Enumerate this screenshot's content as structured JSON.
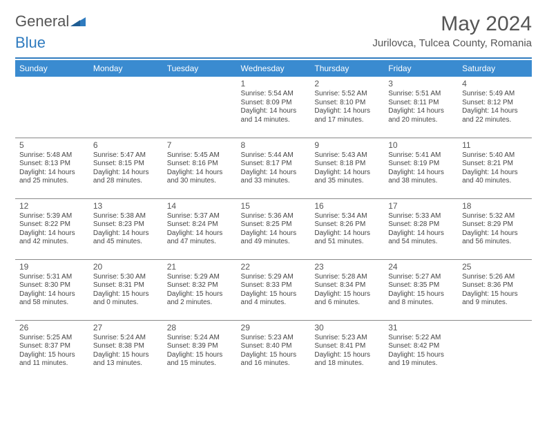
{
  "brand": {
    "part1": "General",
    "part2": "Blue"
  },
  "title": "May 2024",
  "subtitle": "Jurilovca, Tulcea County, Romania",
  "headerColor": "#3a8bd0",
  "ruleColor": "#2f7bbf",
  "dayHeaders": [
    "Sunday",
    "Monday",
    "Tuesday",
    "Wednesday",
    "Thursday",
    "Friday",
    "Saturday"
  ],
  "weeks": [
    [
      null,
      null,
      null,
      {
        "n": "1",
        "sr": "5:54 AM",
        "ss": "8:09 PM",
        "dl": "14 hours and 14 minutes."
      },
      {
        "n": "2",
        "sr": "5:52 AM",
        "ss": "8:10 PM",
        "dl": "14 hours and 17 minutes."
      },
      {
        "n": "3",
        "sr": "5:51 AM",
        "ss": "8:11 PM",
        "dl": "14 hours and 20 minutes."
      },
      {
        "n": "4",
        "sr": "5:49 AM",
        "ss": "8:12 PM",
        "dl": "14 hours and 22 minutes."
      }
    ],
    [
      {
        "n": "5",
        "sr": "5:48 AM",
        "ss": "8:13 PM",
        "dl": "14 hours and 25 minutes."
      },
      {
        "n": "6",
        "sr": "5:47 AM",
        "ss": "8:15 PM",
        "dl": "14 hours and 28 minutes."
      },
      {
        "n": "7",
        "sr": "5:45 AM",
        "ss": "8:16 PM",
        "dl": "14 hours and 30 minutes."
      },
      {
        "n": "8",
        "sr": "5:44 AM",
        "ss": "8:17 PM",
        "dl": "14 hours and 33 minutes."
      },
      {
        "n": "9",
        "sr": "5:43 AM",
        "ss": "8:18 PM",
        "dl": "14 hours and 35 minutes."
      },
      {
        "n": "10",
        "sr": "5:41 AM",
        "ss": "8:19 PM",
        "dl": "14 hours and 38 minutes."
      },
      {
        "n": "11",
        "sr": "5:40 AM",
        "ss": "8:21 PM",
        "dl": "14 hours and 40 minutes."
      }
    ],
    [
      {
        "n": "12",
        "sr": "5:39 AM",
        "ss": "8:22 PM",
        "dl": "14 hours and 42 minutes."
      },
      {
        "n": "13",
        "sr": "5:38 AM",
        "ss": "8:23 PM",
        "dl": "14 hours and 45 minutes."
      },
      {
        "n": "14",
        "sr": "5:37 AM",
        "ss": "8:24 PM",
        "dl": "14 hours and 47 minutes."
      },
      {
        "n": "15",
        "sr": "5:36 AM",
        "ss": "8:25 PM",
        "dl": "14 hours and 49 minutes."
      },
      {
        "n": "16",
        "sr": "5:34 AM",
        "ss": "8:26 PM",
        "dl": "14 hours and 51 minutes."
      },
      {
        "n": "17",
        "sr": "5:33 AM",
        "ss": "8:28 PM",
        "dl": "14 hours and 54 minutes."
      },
      {
        "n": "18",
        "sr": "5:32 AM",
        "ss": "8:29 PM",
        "dl": "14 hours and 56 minutes."
      }
    ],
    [
      {
        "n": "19",
        "sr": "5:31 AM",
        "ss": "8:30 PM",
        "dl": "14 hours and 58 minutes."
      },
      {
        "n": "20",
        "sr": "5:30 AM",
        "ss": "8:31 PM",
        "dl": "15 hours and 0 minutes."
      },
      {
        "n": "21",
        "sr": "5:29 AM",
        "ss": "8:32 PM",
        "dl": "15 hours and 2 minutes."
      },
      {
        "n": "22",
        "sr": "5:29 AM",
        "ss": "8:33 PM",
        "dl": "15 hours and 4 minutes."
      },
      {
        "n": "23",
        "sr": "5:28 AM",
        "ss": "8:34 PM",
        "dl": "15 hours and 6 minutes."
      },
      {
        "n": "24",
        "sr": "5:27 AM",
        "ss": "8:35 PM",
        "dl": "15 hours and 8 minutes."
      },
      {
        "n": "25",
        "sr": "5:26 AM",
        "ss": "8:36 PM",
        "dl": "15 hours and 9 minutes."
      }
    ],
    [
      {
        "n": "26",
        "sr": "5:25 AM",
        "ss": "8:37 PM",
        "dl": "15 hours and 11 minutes."
      },
      {
        "n": "27",
        "sr": "5:24 AM",
        "ss": "8:38 PM",
        "dl": "15 hours and 13 minutes."
      },
      {
        "n": "28",
        "sr": "5:24 AM",
        "ss": "8:39 PM",
        "dl": "15 hours and 15 minutes."
      },
      {
        "n": "29",
        "sr": "5:23 AM",
        "ss": "8:40 PM",
        "dl": "15 hours and 16 minutes."
      },
      {
        "n": "30",
        "sr": "5:23 AM",
        "ss": "8:41 PM",
        "dl": "15 hours and 18 minutes."
      },
      {
        "n": "31",
        "sr": "5:22 AM",
        "ss": "8:42 PM",
        "dl": "15 hours and 19 minutes."
      },
      null
    ]
  ],
  "labels": {
    "sunrise": "Sunrise: ",
    "sunset": "Sunset: ",
    "daylight": "Daylight: "
  }
}
